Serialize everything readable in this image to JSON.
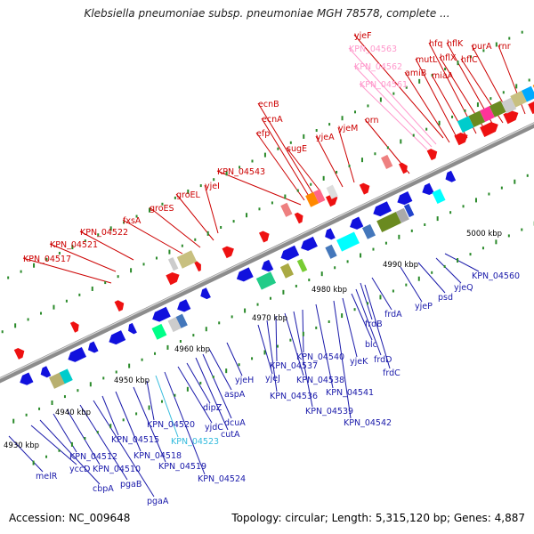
{
  "title": "Klebsiella pneumoniae subsp. pneumoniae MGH 78578, complete ...",
  "footer": {
    "accession": "Accession: NC_009648",
    "summary": "Topology: circular; Length: 5,315,120 bp; Genes: 4,887"
  },
  "colors": {
    "forward_label": "#cc0000",
    "reverse_label": "#1a1aaa",
    "highlight_label": "#ff99cc",
    "cyan_label": "#33bbdd",
    "forward_gene": "#ee1111",
    "reverse_gene": "#1111dd",
    "backbone": "#8c8c8c",
    "tick": "#2a8a2a"
  },
  "ruler": [
    {
      "label": "4930 kbp"
    },
    {
      "label": "4940 kbp"
    },
    {
      "label": "4950 kbp"
    },
    {
      "label": "4960 kbp"
    },
    {
      "label": "4970 kbp"
    },
    {
      "label": "4980 kbp"
    },
    {
      "label": "4990 kbp"
    },
    {
      "label": "5000 kbp"
    }
  ],
  "forward_genes": [
    "KPN_04517",
    "KPN_04521",
    "KPN_04522",
    "fxsA",
    "groES",
    "groEL",
    "yjeI",
    "KPN_04543",
    "efp",
    "ecnA",
    "ecnB",
    "sugE",
    "yjeA",
    "yjeM",
    "orn",
    "KPN_04561",
    "KPN_04562",
    "KPN_04563",
    "yjeF",
    "amiB",
    "mutL",
    "miaA",
    "hfq",
    "hflX",
    "hflK",
    "hflC",
    "purA",
    "rnr"
  ],
  "reverse_genes": [
    "melR",
    "yccD",
    "cbpA",
    "KPN_04512",
    "KPN_04510",
    "pgaB",
    "pgaA",
    "KPN_04515",
    "KPN_04518",
    "KPN_04519",
    "KPN_04520",
    "KPN_04523",
    "KPN_04524",
    "yjdC",
    "dipZ",
    "cutA",
    "dcuA",
    "aspA",
    "yjeH",
    "yjeJ",
    "KPN_04536",
    "KPN_04537",
    "KPN_04538",
    "KPN_04539",
    "KPN_04540",
    "KPN_04541",
    "KPN_04542",
    "yjeK",
    "blc",
    "frdD",
    "frdC",
    "frdB",
    "frdA",
    "yjeP",
    "psd",
    "yjeQ",
    "KPN_04560"
  ]
}
